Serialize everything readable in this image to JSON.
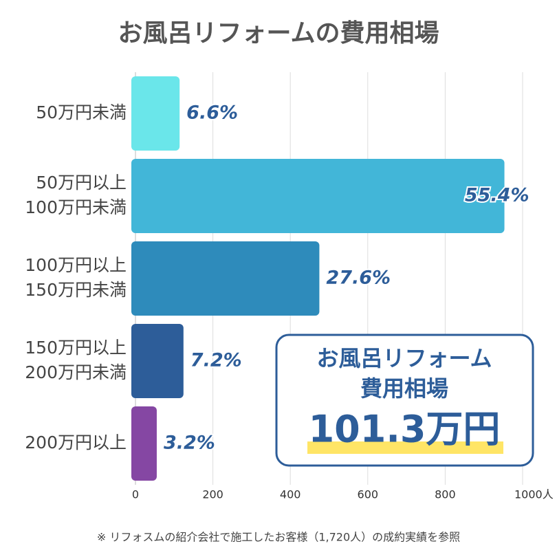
{
  "chart_data": {
    "type": "barh",
    "title": "お風呂リフォームの費用相場",
    "categories": [
      [
        "50万円未満"
      ],
      [
        "50万円以上",
        "100万円未満"
      ],
      [
        "100万円以上",
        "150万円未満"
      ],
      [
        "150万円以上",
        "200万円未満"
      ],
      [
        "200万円以上"
      ]
    ],
    "values": [
      114,
      953,
      475,
      124,
      55
    ],
    "value_labels": [
      "6.6%",
      "55.4%",
      "27.6%",
      "7.2%",
      "3.2%"
    ],
    "colors": [
      "#6ae6ea",
      "#42b6d8",
      "#2e8bbb",
      "#2d5d99",
      "#8547a3"
    ],
    "xlim": [
      0,
      1000
    ],
    "xticks": [
      0,
      200,
      400,
      600,
      800,
      {
        "value": 1000,
        "label": "1000人"
      }
    ],
    "grid": true,
    "annotation": {
      "lines": [
        "お風呂リフォーム",
        "費用相場"
      ],
      "value": "101.3万円"
    },
    "footnote": "※ リフォスムの紹介会社で施工したお客様（1,720人）の成約実績を参照"
  }
}
